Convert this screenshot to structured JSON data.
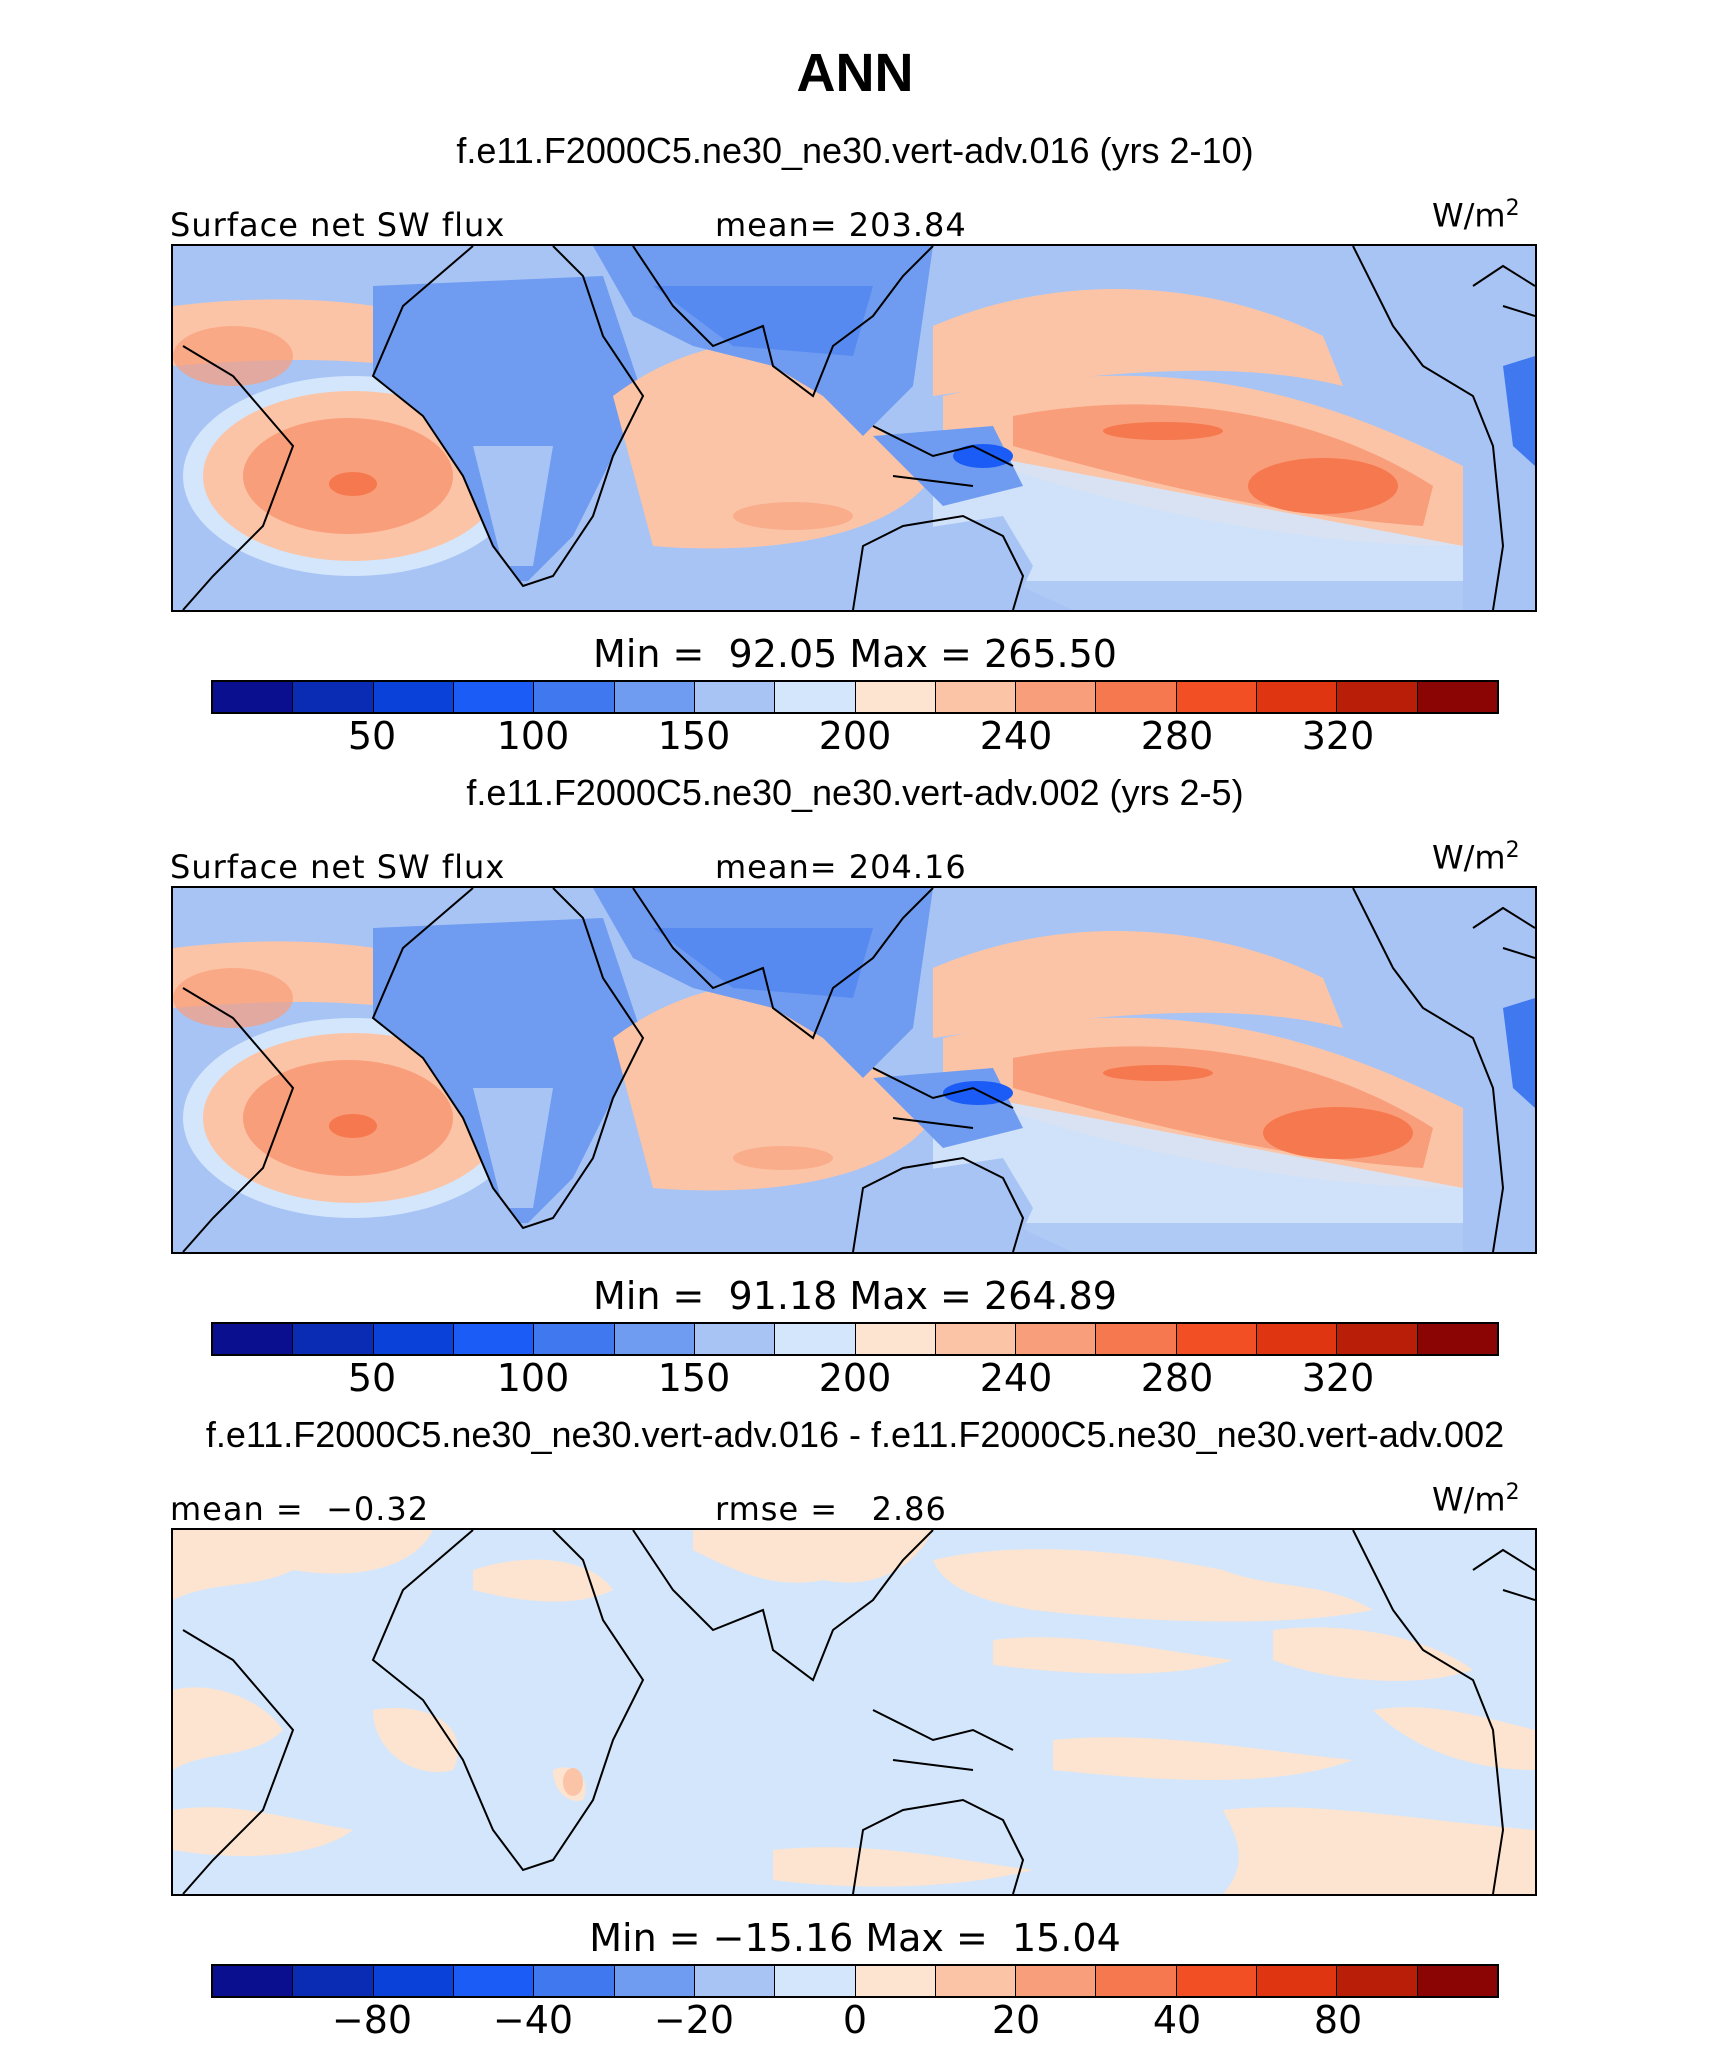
{
  "figure_title": "ANN",
  "units_base": "W/m",
  "units_exp": "2",
  "colors": [
    "#0a0f8f",
    "#0a2cb4",
    "#0a41d8",
    "#1a5cf5",
    "#3f78ef",
    "#6f9cf0",
    "#a7c4f5",
    "#d4e6fb",
    "#fde4d0",
    "#fcc4a6",
    "#f99e7a",
    "#f6784f",
    "#f24f24",
    "#df3510",
    "#b91e08",
    "#8c0505"
  ],
  "panels": [
    {
      "case_title": "f.e11.F2000C5.ne30_ne30.vert-adv.016 (yrs 2-10)",
      "left_label": "Surface net SW flux",
      "stat_label": "mean= 203.84",
      "min_max": "Min =  92.05 Max = 265.50",
      "ticks": [
        "50",
        "100",
        "150",
        "200",
        "240",
        "280",
        "320"
      ]
    },
    {
      "case_title": "f.e11.F2000C5.ne30_ne30.vert-adv.002 (yrs 2-5)",
      "left_label": "Surface net SW flux",
      "stat_label": "mean= 204.16",
      "min_max": "Min =  91.18 Max = 264.89",
      "ticks": [
        "50",
        "100",
        "150",
        "200",
        "240",
        "280",
        "320"
      ]
    },
    {
      "case_title": "f.e11.F2000C5.ne30_ne30.vert-adv.016 - f.e11.F2000C5.ne30_ne30.vert-adv.002",
      "left_label": "mean =  −0.32",
      "stat_label": "rmse =   2.86",
      "min_max": "Min = −15.16 Max =  15.04",
      "ticks": [
        "−80",
        "−40",
        "−20",
        "0",
        "20",
        "40",
        "80"
      ]
    }
  ]
}
